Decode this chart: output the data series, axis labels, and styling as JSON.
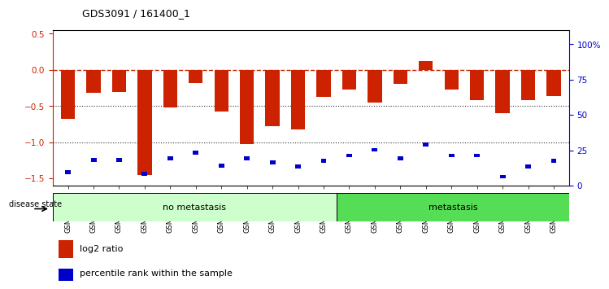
{
  "title": "GDS3091 / 161400_1",
  "samples": [
    "GSM114910",
    "GSM114911",
    "GSM114917",
    "GSM114918",
    "GSM114919",
    "GSM114920",
    "GSM114921",
    "GSM114925",
    "GSM114926",
    "GSM114927",
    "GSM114928",
    "GSM114909",
    "GSM114912",
    "GSM114913",
    "GSM114914",
    "GSM114915",
    "GSM114916",
    "GSM114922",
    "GSM114923",
    "GSM114924"
  ],
  "log2_ratio": [
    -0.68,
    -0.32,
    -0.3,
    -1.45,
    -0.52,
    -0.18,
    -0.58,
    -1.02,
    -0.78,
    -0.82,
    -0.37,
    -0.27,
    -0.45,
    -0.19,
    0.12,
    -0.27,
    -0.42,
    -0.6,
    -0.42,
    -0.36
  ],
  "percentile_rank": [
    8,
    17,
    17,
    7,
    18,
    22,
    13,
    18,
    15,
    12,
    16,
    20,
    24,
    18,
    28,
    20,
    20,
    5,
    12,
    16
  ],
  "no_metastasis_count": 11,
  "metastasis_count": 9,
  "bar_color": "#cc2200",
  "square_color": "#0000cc",
  "dashed_line_color": "#cc2200",
  "dotted_line_color": "#333333",
  "no_metastasis_color": "#ccffcc",
  "metastasis_color": "#55dd55",
  "ylim_left": [
    -1.6,
    0.55
  ],
  "ylim_right": [
    0,
    110
  ],
  "yticks_left": [
    0.5,
    0.0,
    -0.5,
    -1.0,
    -1.5
  ],
  "yticks_right": [
    100,
    75,
    50,
    25,
    0
  ],
  "ytick_labels_right": [
    "100%",
    "75",
    "50",
    "25",
    "0"
  ],
  "bg_color": "#f0f0f0"
}
